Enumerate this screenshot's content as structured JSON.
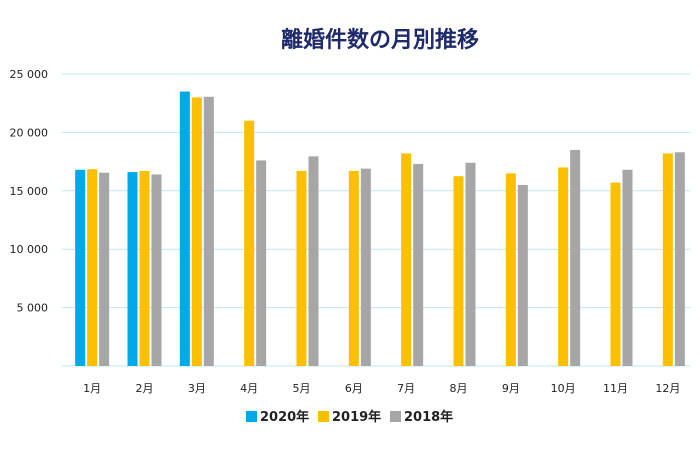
{
  "chart_data": {
    "type": "bar",
    "title": "離婚件数の月別推移",
    "xlabel": "",
    "ylabel": "",
    "categories": [
      "1月",
      "2月",
      "3月",
      "4月",
      "5月",
      "6月",
      "7月",
      "8月",
      "9月",
      "10月",
      "11月",
      "12月"
    ],
    "series": [
      {
        "name": "2020年",
        "color": "#00a9e8",
        "values": [
          16800,
          16600,
          23500,
          null,
          null,
          null,
          null,
          null,
          null,
          null,
          null,
          null
        ]
      },
      {
        "name": "2019年",
        "color": "#fcc000",
        "values": [
          16850,
          16700,
          23000,
          21000,
          16700,
          16700,
          18200,
          16250,
          16500,
          17000,
          15700,
          18200
        ]
      },
      {
        "name": "2018年",
        "color": "#a6a6a6",
        "values": [
          16550,
          16400,
          23050,
          17600,
          17950,
          16900,
          17300,
          17400,
          15500,
          18500,
          16800,
          18300
        ]
      }
    ],
    "yticks": [
      "5 000",
      "10 000",
      "15 000",
      "20 000",
      "25 000"
    ],
    "ytick_values": [
      5000,
      10000,
      15000,
      20000,
      25000
    ],
    "ylim": [
      0,
      25000
    ],
    "grid": true,
    "legend": "bottom-center"
  }
}
